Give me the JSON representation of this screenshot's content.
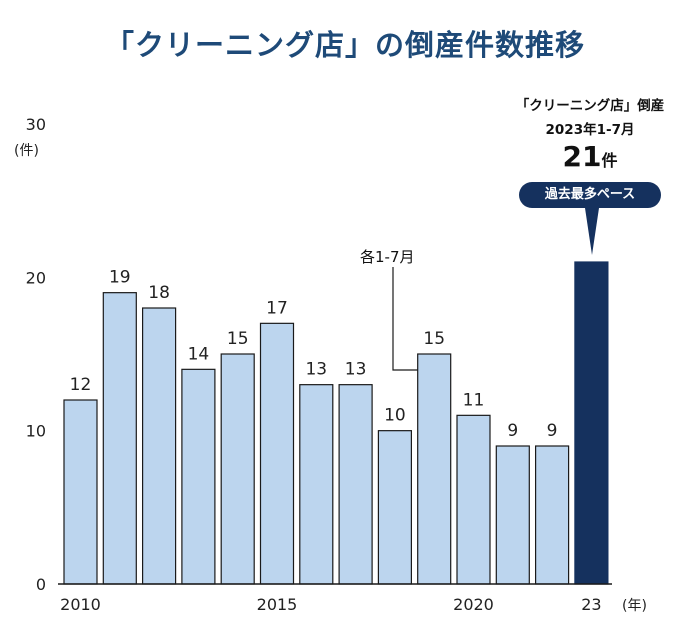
{
  "header": {
    "title": "「クリーニング店」の倒産件数推移"
  },
  "callout": {
    "title": "「クリーニング店」倒産",
    "period": "2023年1-7月",
    "count": "21",
    "count_unit": "件",
    "badge": "過去最多ペース"
  },
  "note": "各1-7月",
  "colors": {
    "bar": "#bcd5ee",
    "bar_highlight": "#15315e",
    "bar_stroke": "#1a1a1a",
    "title": "#1e4a78"
  },
  "chart_data": {
    "type": "bar",
    "title": "「クリーニング店」の倒産件数推移",
    "categories": [
      "2010",
      "2011",
      "2012",
      "2013",
      "2014",
      "2015",
      "2016",
      "2017",
      "2018",
      "2019",
      "2020",
      "2021",
      "2022",
      "2023"
    ],
    "values": [
      12,
      19,
      18,
      14,
      15,
      17,
      13,
      13,
      10,
      15,
      11,
      9,
      9,
      21
    ],
    "x_tick_labels": [
      "2010",
      "2015",
      "2020",
      "23"
    ],
    "x_unit": "(年)",
    "y_unit": "(件)",
    "y_ticks": [
      0,
      10,
      20,
      30
    ],
    "ylim": [
      0,
      30
    ],
    "highlight_category": "2023",
    "grid": false
  }
}
